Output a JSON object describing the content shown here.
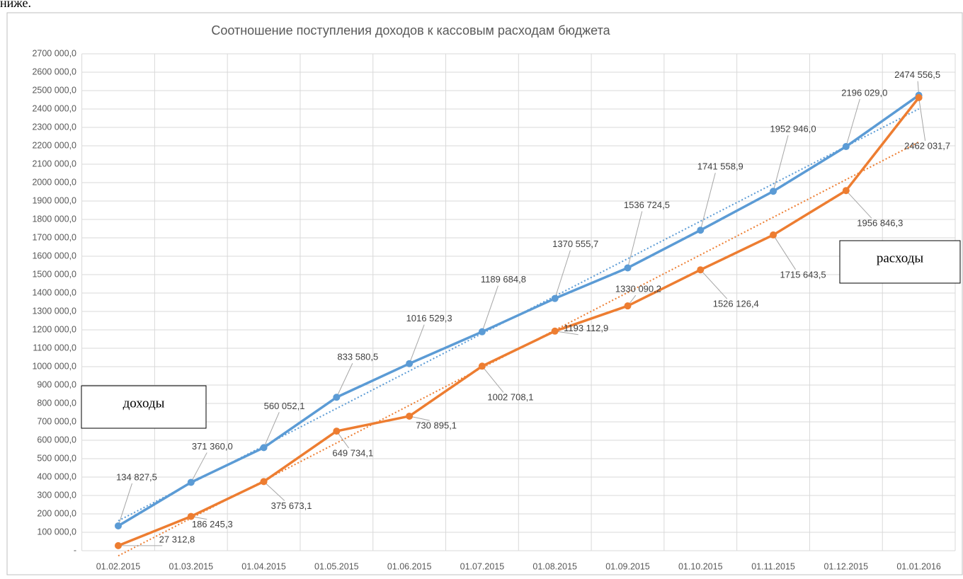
{
  "page_text": "ниже.",
  "chart_data": {
    "type": "line",
    "title": "Соотношение поступления доходов к кассовым расходам бюджета",
    "categories": [
      "01.02.2015",
      "01.03.2015",
      "01.04.2015",
      "01.05.2015",
      "01.06.2015",
      "01.07.2015",
      "01.08.2015",
      "01.09.2015",
      "01.10.2015",
      "01.11.2015",
      "01.12.2015",
      "01.01.2016"
    ],
    "series": [
      {
        "name": "доходы",
        "color": "#5b9bd5",
        "values": [
          134827.5,
          371360.0,
          560052.1,
          833580.5,
          1016529.3,
          1189684.8,
          1370555.7,
          1536724.5,
          1741558.9,
          1952946.0,
          2196029.0,
          2474556.5
        ],
        "value_labels": [
          "134 827,5",
          "371 360,0",
          "560 052,1",
          "833 580,5",
          "1016 529,3",
          "1189 684,8",
          "1370 555,7",
          "1536 724,5",
          "1741 558,9",
          "1952 946,0",
          "2196 029,0",
          "2474 556,5"
        ]
      },
      {
        "name": "расходы",
        "color": "#ed7d31",
        "values": [
          27312.8,
          186245.3,
          375673.1,
          649734.1,
          730895.1,
          1002708.1,
          1193112.9,
          1330090.2,
          1526126.4,
          1715643.5,
          1956846.3,
          2462031.7
        ],
        "value_labels": [
          "27 312,8",
          "186 245,3",
          "375 673,1",
          "649 734,1",
          "730 895,1",
          "1002 708,1",
          "1193 112,9",
          "1330 090,2",
          "1526 126,4",
          "1715 643,5",
          "1956 846,3",
          "2462 031,7"
        ]
      }
    ],
    "trendline": "linear",
    "ylim": [
      0,
      2700000
    ],
    "yticks": [
      {
        "value": 0,
        "label": "-"
      },
      {
        "value": 100000,
        "label": "100 000,0"
      },
      {
        "value": 200000,
        "label": "200 000,0"
      },
      {
        "value": 300000,
        "label": "300 000,0"
      },
      {
        "value": 400000,
        "label": "400 000,0"
      },
      {
        "value": 500000,
        "label": "500 000,0"
      },
      {
        "value": 600000,
        "label": "600 000,0"
      },
      {
        "value": 700000,
        "label": "700 000,0"
      },
      {
        "value": 800000,
        "label": "800 000,0"
      },
      {
        "value": 900000,
        "label": "900 000,0"
      },
      {
        "value": 1000000,
        "label": "1000 000,0"
      },
      {
        "value": 1100000,
        "label": "1100 000,0"
      },
      {
        "value": 1200000,
        "label": "1200 000,0"
      },
      {
        "value": 1300000,
        "label": "1300 000,0"
      },
      {
        "value": 1400000,
        "label": "1400 000,0"
      },
      {
        "value": 1500000,
        "label": "1500 000,0"
      },
      {
        "value": 1600000,
        "label": "1600 000,0"
      },
      {
        "value": 1700000,
        "label": "1700 000,0"
      },
      {
        "value": 1800000,
        "label": "1800 000,0"
      },
      {
        "value": 1900000,
        "label": "1900 000,0"
      },
      {
        "value": 2000000,
        "label": "2000 000,0"
      },
      {
        "value": 2100000,
        "label": "2100 000,0"
      },
      {
        "value": 2200000,
        "label": "2200 000,0"
      },
      {
        "value": 2300000,
        "label": "2300 000,0"
      },
      {
        "value": 2400000,
        "label": "2400 000,0"
      },
      {
        "value": 2500000,
        "label": "2500 000,0"
      },
      {
        "value": 2600000,
        "label": "2600 000,0"
      },
      {
        "value": 2700000,
        "label": "2700 000,0"
      }
    ],
    "grid": true
  }
}
